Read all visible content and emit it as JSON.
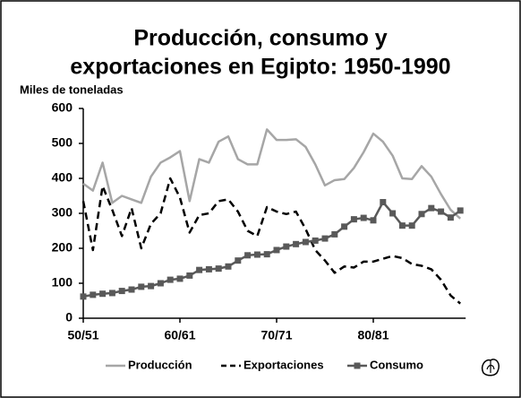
{
  "chart_data": {
    "type": "line",
    "title": [
      "Producción, consumo y",
      "exportaciones en Egipto: 1950-1990"
    ],
    "y_label": "Miles de toneladas",
    "categories": [
      "50/51",
      null,
      null,
      null,
      null,
      null,
      null,
      null,
      null,
      null,
      "60/61",
      null,
      null,
      null,
      null,
      null,
      null,
      null,
      null,
      null,
      "70/71",
      null,
      null,
      null,
      null,
      null,
      null,
      null,
      null,
      null,
      "80/81",
      null,
      null,
      null,
      null,
      null,
      null,
      null,
      null,
      null
    ],
    "ylim": [
      0,
      600
    ],
    "yticks": [
      0,
      100,
      200,
      300,
      400,
      500,
      600
    ],
    "grid": false,
    "legend": "bottom",
    "series": [
      {
        "name": "Producción",
        "color": "#a6a6a6",
        "dash": false,
        "marker": "none",
        "values": [
          385,
          365,
          445,
          330,
          350,
          340,
          330,
          405,
          445,
          460,
          478,
          335,
          455,
          445,
          505,
          520,
          455,
          440,
          440,
          540,
          510,
          510,
          512,
          490,
          440,
          380,
          395,
          398,
          430,
          475,
          528,
          505,
          465,
          400,
          398,
          435,
          405,
          355,
          310,
          285
        ]
      },
      {
        "name": "Exportaciones",
        "color": "#000000",
        "dash": true,
        "marker": "none",
        "values": [
          335,
          195,
          378,
          310,
          235,
          315,
          200,
          270,
          300,
          400,
          345,
          245,
          295,
          300,
          335,
          340,
          305,
          250,
          235,
          318,
          305,
          298,
          305,
          255,
          195,
          165,
          130,
          148,
          145,
          162,
          162,
          170,
          178,
          172,
          155,
          150,
          140,
          110,
          65,
          42
        ]
      },
      {
        "name": "Consumo",
        "color": "#595959",
        "dash": false,
        "marker": "square",
        "values": [
          62,
          67,
          70,
          72,
          78,
          82,
          90,
          92,
          100,
          110,
          113,
          122,
          138,
          140,
          142,
          148,
          165,
          180,
          182,
          183,
          195,
          205,
          212,
          218,
          222,
          228,
          240,
          262,
          283,
          287,
          280,
          332,
          300,
          265,
          265,
          298,
          315,
          305,
          288,
          308
        ]
      }
    ]
  }
}
